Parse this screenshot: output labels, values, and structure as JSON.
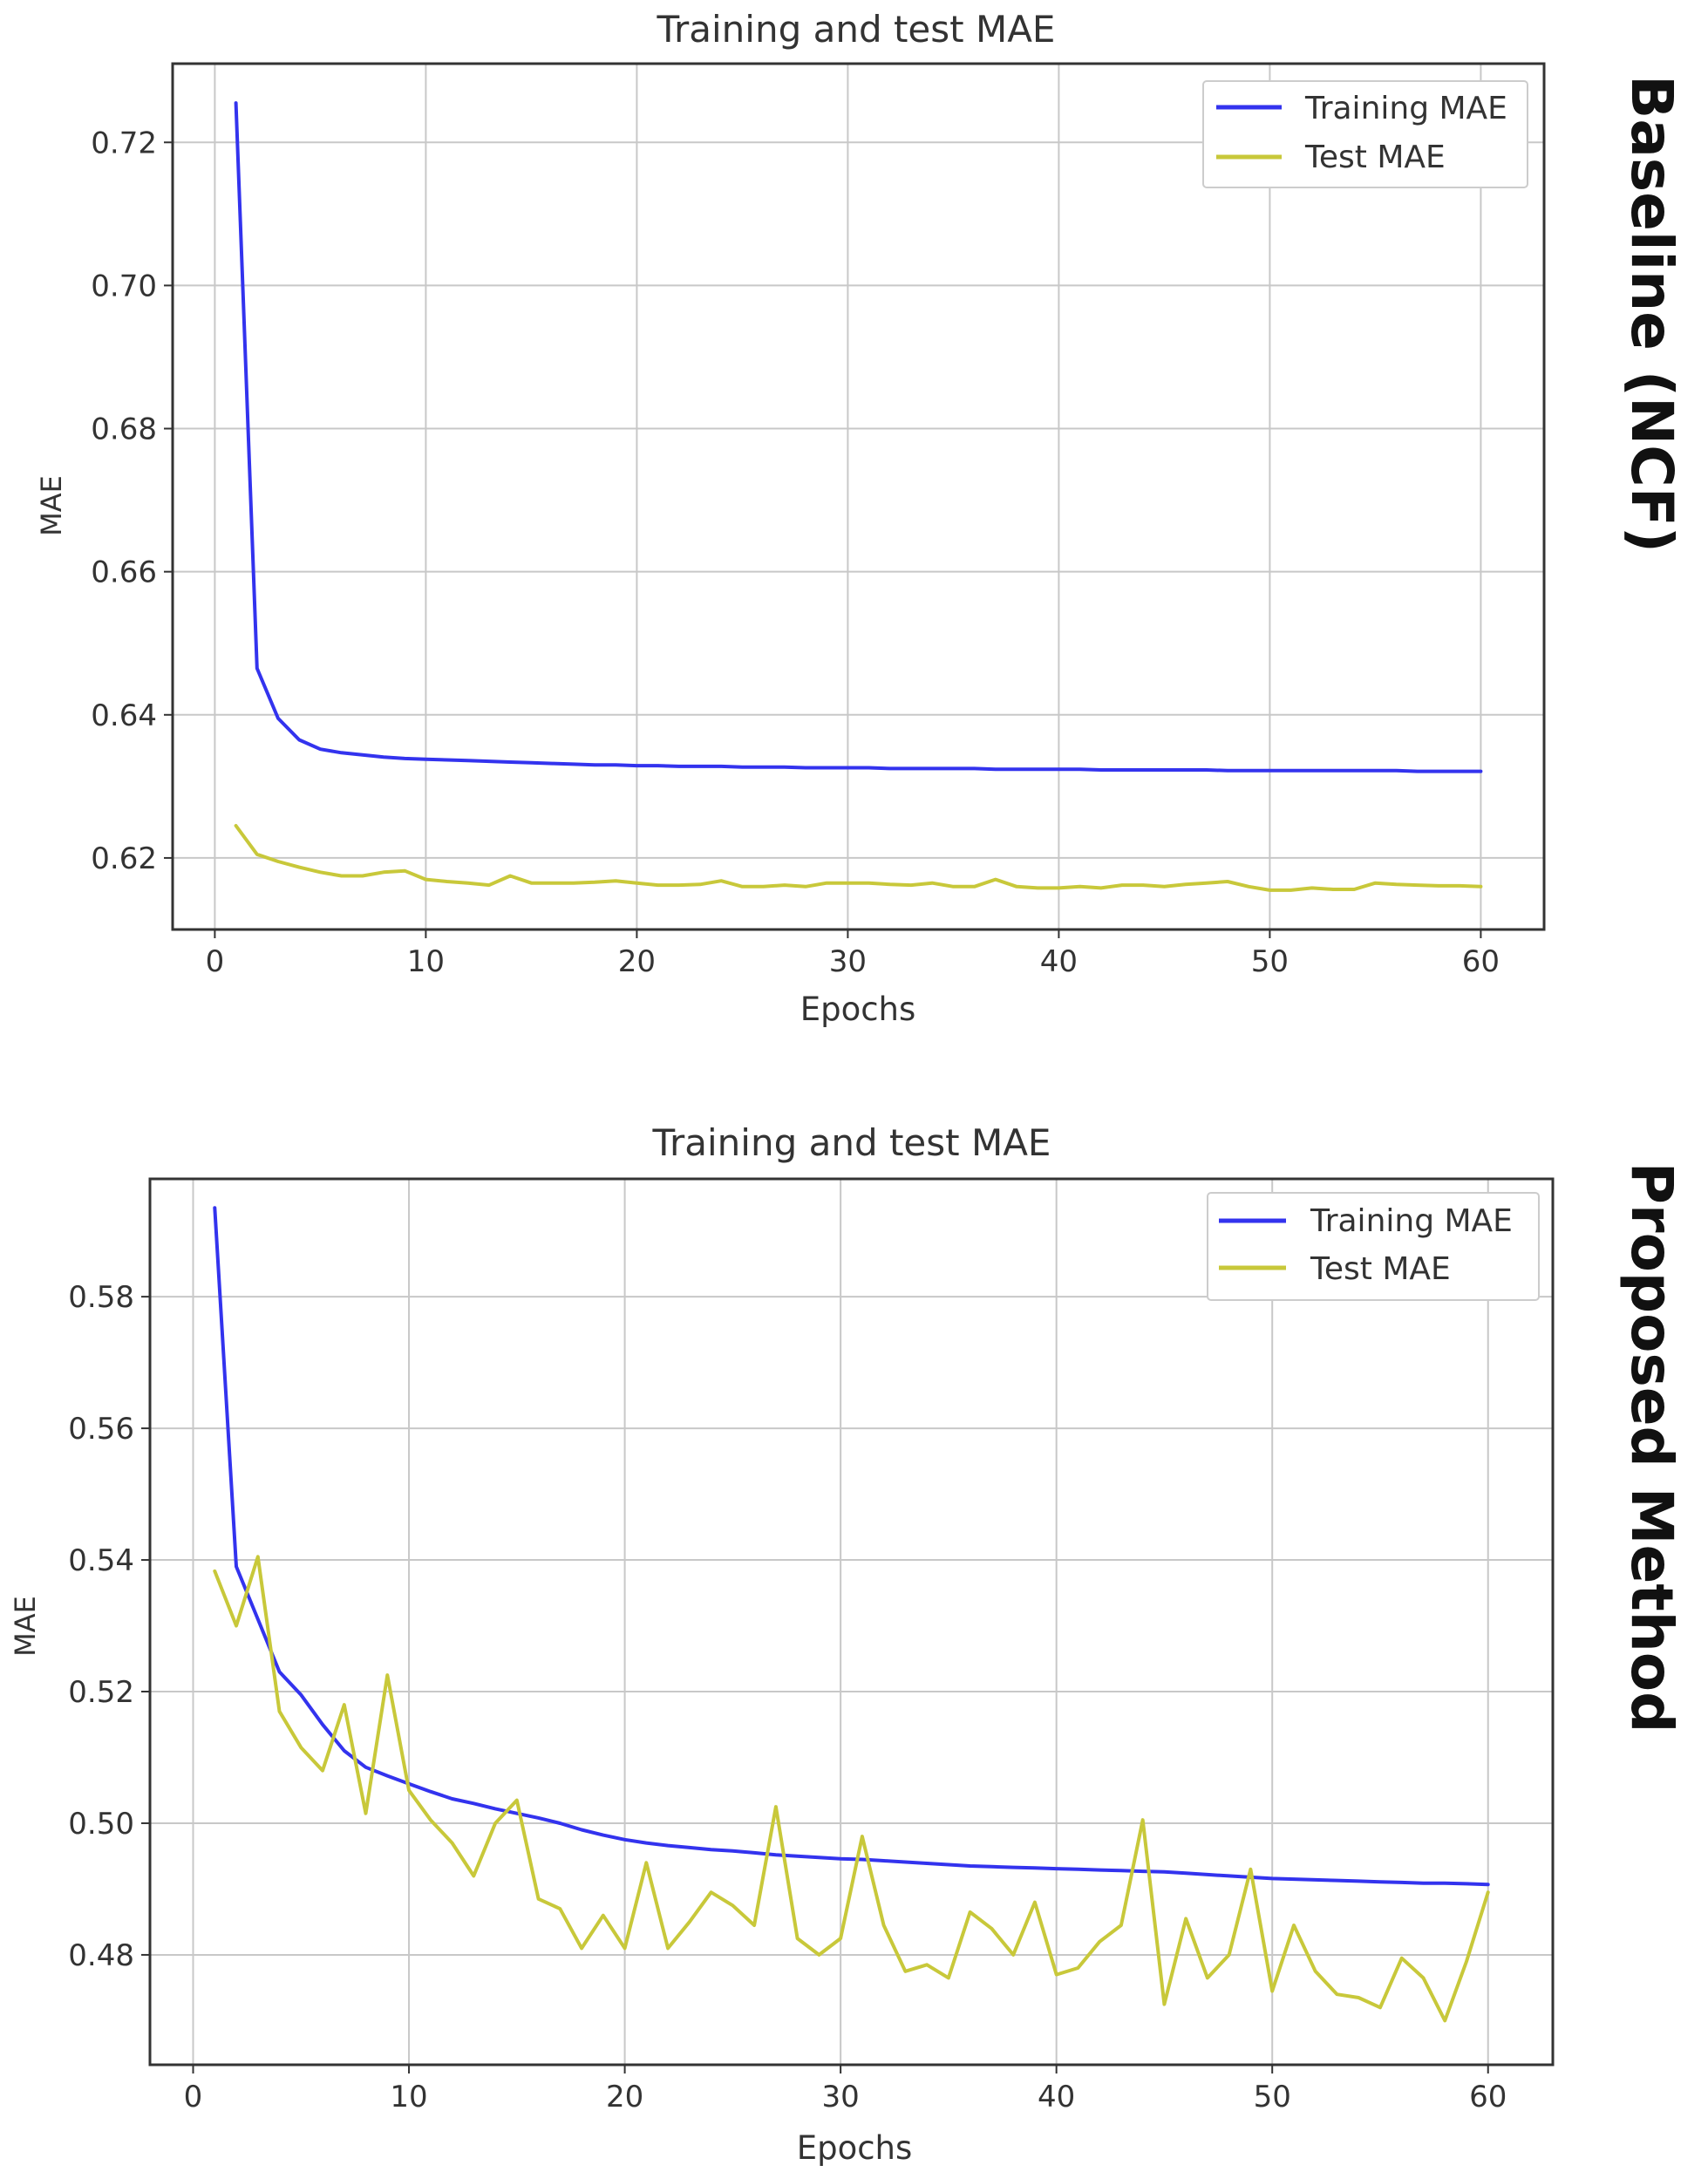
{
  "colors": {
    "training": "#3333ee",
    "test": "#c8c83a",
    "grid": "#c8c8c8",
    "axis": "#333333",
    "text": "#333333"
  },
  "chart_data": [
    {
      "type": "line",
      "title": "Training and test MAE",
      "xlabel": "Epochs",
      "ylabel": "MAE",
      "side_label": "Baseline (NCF)",
      "xlim": [
        -2,
        63
      ],
      "ylim": [
        0.61,
        0.731
      ],
      "xticks": [
        0,
        10,
        20,
        30,
        40,
        50,
        60
      ],
      "yticks": [
        0.62,
        0.64,
        0.66,
        0.68,
        0.7,
        0.72
      ],
      "ytick_labels": [
        "0.62",
        "0.64",
        "0.66",
        "0.68",
        "0.70",
        "0.72"
      ],
      "grid": true,
      "legend_position": "top-right",
      "series": [
        {
          "name": "Training MAE",
          "color_key": "training",
          "x": [
            1,
            2,
            3,
            4,
            5,
            6,
            7,
            8,
            9,
            10,
            11,
            12,
            13,
            14,
            15,
            16,
            17,
            18,
            19,
            20,
            21,
            22,
            23,
            24,
            25,
            26,
            27,
            28,
            29,
            30,
            31,
            32,
            33,
            34,
            35,
            36,
            37,
            38,
            39,
            40,
            41,
            42,
            43,
            44,
            45,
            46,
            47,
            48,
            49,
            50,
            51,
            52,
            53,
            54,
            55,
            56,
            57,
            58,
            59,
            60
          ],
          "values": [
            0.7255,
            0.6465,
            0.6395,
            0.6365,
            0.6352,
            0.6347,
            0.6344,
            0.6341,
            0.6339,
            0.6338,
            0.6337,
            0.6336,
            0.6335,
            0.6334,
            0.6333,
            0.6332,
            0.6331,
            0.633,
            0.633,
            0.6329,
            0.6329,
            0.6328,
            0.6328,
            0.6328,
            0.6327,
            0.6327,
            0.6327,
            0.6326,
            0.6326,
            0.6326,
            0.6326,
            0.6325,
            0.6325,
            0.6325,
            0.6325,
            0.6325,
            0.6324,
            0.6324,
            0.6324,
            0.6324,
            0.6324,
            0.6323,
            0.6323,
            0.6323,
            0.6323,
            0.6323,
            0.6323,
            0.6322,
            0.6322,
            0.6322,
            0.6322,
            0.6322,
            0.6322,
            0.6322,
            0.6322,
            0.6322,
            0.6321,
            0.6321,
            0.6321,
            0.6321
          ]
        },
        {
          "name": "Test MAE",
          "color_key": "test",
          "x": [
            1,
            2,
            3,
            4,
            5,
            6,
            7,
            8,
            9,
            10,
            11,
            12,
            13,
            14,
            15,
            16,
            17,
            18,
            19,
            20,
            21,
            22,
            23,
            24,
            25,
            26,
            27,
            28,
            29,
            30,
            31,
            32,
            33,
            34,
            35,
            36,
            37,
            38,
            39,
            40,
            41,
            42,
            43,
            44,
            45,
            46,
            47,
            48,
            49,
            50,
            51,
            52,
            53,
            54,
            55,
            56,
            57,
            58,
            59,
            60
          ],
          "values": [
            0.6245,
            0.6205,
            0.6195,
            0.6187,
            0.618,
            0.6175,
            0.6175,
            0.618,
            0.6182,
            0.617,
            0.6167,
            0.6165,
            0.6162,
            0.6175,
            0.6165,
            0.6165,
            0.6165,
            0.6166,
            0.6168,
            0.6165,
            0.6162,
            0.6162,
            0.6163,
            0.6168,
            0.616,
            0.616,
            0.6162,
            0.616,
            0.6165,
            0.6165,
            0.6165,
            0.6163,
            0.6162,
            0.6165,
            0.616,
            0.616,
            0.617,
            0.616,
            0.6158,
            0.6158,
            0.616,
            0.6158,
            0.6162,
            0.6162,
            0.616,
            0.6163,
            0.6165,
            0.6167,
            0.616,
            0.6155,
            0.6155,
            0.6158,
            0.6156,
            0.6156,
            0.6165,
            0.6163,
            0.6162,
            0.6161,
            0.6161,
            0.616
          ]
        }
      ]
    },
    {
      "type": "line",
      "title": "Training and test MAE",
      "xlabel": "Epochs",
      "ylabel": "MAE",
      "side_label": "Proposed Method",
      "xlim": [
        -2,
        63
      ],
      "ylim": [
        0.4633,
        0.5979
      ],
      "xticks": [
        0,
        10,
        20,
        30,
        40,
        50,
        60
      ],
      "yticks": [
        0.48,
        0.5,
        0.52,
        0.54,
        0.56,
        0.58
      ],
      "ytick_labels": [
        "0.48",
        "0.50",
        "0.52",
        "0.54",
        "0.56",
        "0.58"
      ],
      "grid": true,
      "legend_position": "top-right",
      "series": [
        {
          "name": "Training MAE",
          "color_key": "training",
          "x": [
            1,
            2,
            3,
            4,
            5,
            6,
            7,
            8,
            9,
            10,
            11,
            12,
            13,
            14,
            15,
            16,
            17,
            18,
            19,
            20,
            21,
            22,
            23,
            24,
            25,
            26,
            27,
            28,
            29,
            30,
            31,
            32,
            33,
            34,
            35,
            36,
            37,
            38,
            39,
            40,
            41,
            42,
            43,
            44,
            45,
            46,
            47,
            48,
            49,
            50,
            51,
            52,
            53,
            54,
            55,
            56,
            57,
            58,
            59,
            60
          ],
          "values": [
            0.5935,
            0.539,
            0.531,
            0.523,
            0.5195,
            0.515,
            0.511,
            0.5085,
            0.5072,
            0.506,
            0.5048,
            0.5037,
            0.503,
            0.5022,
            0.5015,
            0.5008,
            0.5,
            0.499,
            0.4982,
            0.4975,
            0.497,
            0.4966,
            0.4963,
            0.496,
            0.4958,
            0.4955,
            0.4952,
            0.495,
            0.4948,
            0.4946,
            0.4945,
            0.4943,
            0.4941,
            0.4939,
            0.4937,
            0.4935,
            0.4934,
            0.4933,
            0.4932,
            0.4931,
            0.493,
            0.4929,
            0.4928,
            0.4927,
            0.4926,
            0.4924,
            0.4922,
            0.492,
            0.4918,
            0.4916,
            0.4915,
            0.4914,
            0.4913,
            0.4912,
            0.4911,
            0.491,
            0.4909,
            0.4909,
            0.4908,
            0.4907
          ]
        },
        {
          "name": "Test MAE",
          "color_key": "test",
          "x": [
            1,
            2,
            3,
            4,
            5,
            6,
            7,
            8,
            9,
            10,
            11,
            12,
            13,
            14,
            15,
            16,
            17,
            18,
            19,
            20,
            21,
            22,
            23,
            24,
            25,
            26,
            27,
            28,
            29,
            30,
            31,
            32,
            33,
            34,
            35,
            36,
            37,
            38,
            39,
            40,
            41,
            42,
            43,
            44,
            45,
            46,
            47,
            48,
            49,
            50,
            51,
            52,
            53,
            54,
            55,
            56,
            57,
            58,
            59,
            60
          ],
          "values": [
            0.5383,
            0.53,
            0.5405,
            0.517,
            0.5115,
            0.508,
            0.518,
            0.5015,
            0.5225,
            0.505,
            0.5005,
            0.497,
            0.492,
            0.5,
            0.5035,
            0.4885,
            0.487,
            0.481,
            0.486,
            0.481,
            0.494,
            0.481,
            0.485,
            0.4895,
            0.4875,
            0.4845,
            0.5025,
            0.4825,
            0.48,
            0.4825,
            0.498,
            0.4845,
            0.4775,
            0.4785,
            0.4765,
            0.4865,
            0.484,
            0.48,
            0.488,
            0.477,
            0.478,
            0.482,
            0.4845,
            0.5005,
            0.4725,
            0.4855,
            0.4765,
            0.48,
            0.493,
            0.4745,
            0.4845,
            0.4775,
            0.474,
            0.4735,
            0.472,
            0.4795,
            0.4765,
            0.47,
            0.479,
            0.4895
          ]
        }
      ]
    }
  ]
}
